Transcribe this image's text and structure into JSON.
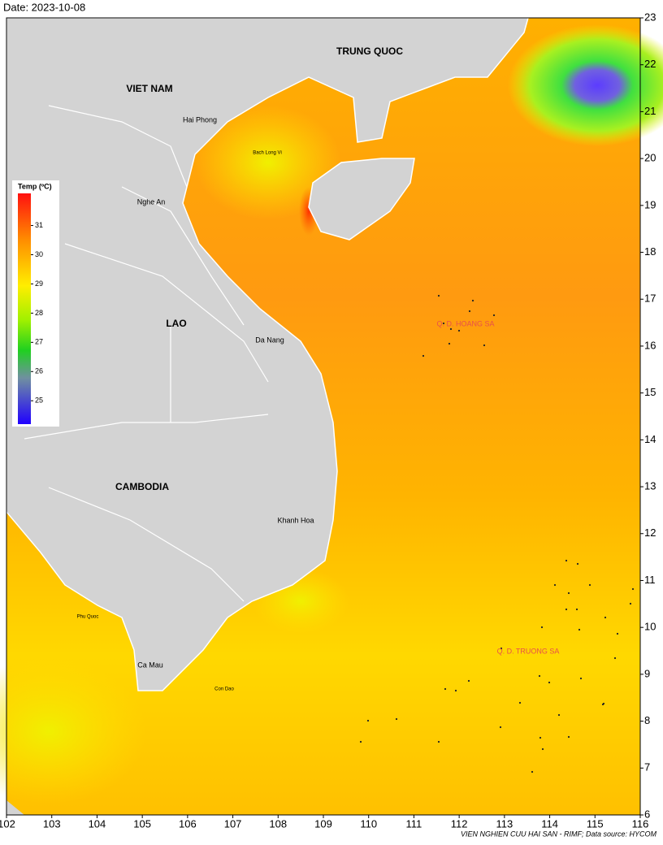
{
  "map": {
    "date": "Date: 2023-10-08",
    "lon_lim": [
      102,
      116
    ],
    "lat_lim": [
      6,
      23
    ],
    "lon_ticks": [
      102,
      103,
      104,
      105,
      106,
      107,
      108,
      109,
      110,
      111,
      112,
      113,
      114,
      115,
      116
    ],
    "lat_ticks": [
      6,
      7,
      8,
      9,
      10,
      11,
      12,
      13,
      14,
      15,
      16,
      17,
      18,
      19,
      20,
      21,
      22,
      23
    ],
    "countries": [
      "TRUNG QUOC",
      "VIET NAM",
      "LAO",
      "CAMBODIA"
    ],
    "places": [
      "Hai Phong",
      "Bach Long Vi",
      "Nghe An",
      "Da Nang",
      "Khanh Hoa",
      "Phu Quoc",
      "Ca Mau",
      "Con Dao"
    ],
    "islands": [
      "Q. D. HOANG SA",
      "Q. D. TRUONG SA"
    ],
    "legend": {
      "title": "Temp (ºC)",
      "lim": [
        24.2,
        32.1
      ],
      "ticks": [
        25,
        26,
        27,
        28,
        29,
        30,
        31
      ]
    },
    "footer": "VIEN NGHIEN CUU HAI SAN - RIMF; Data source: HYCOM"
  }
}
